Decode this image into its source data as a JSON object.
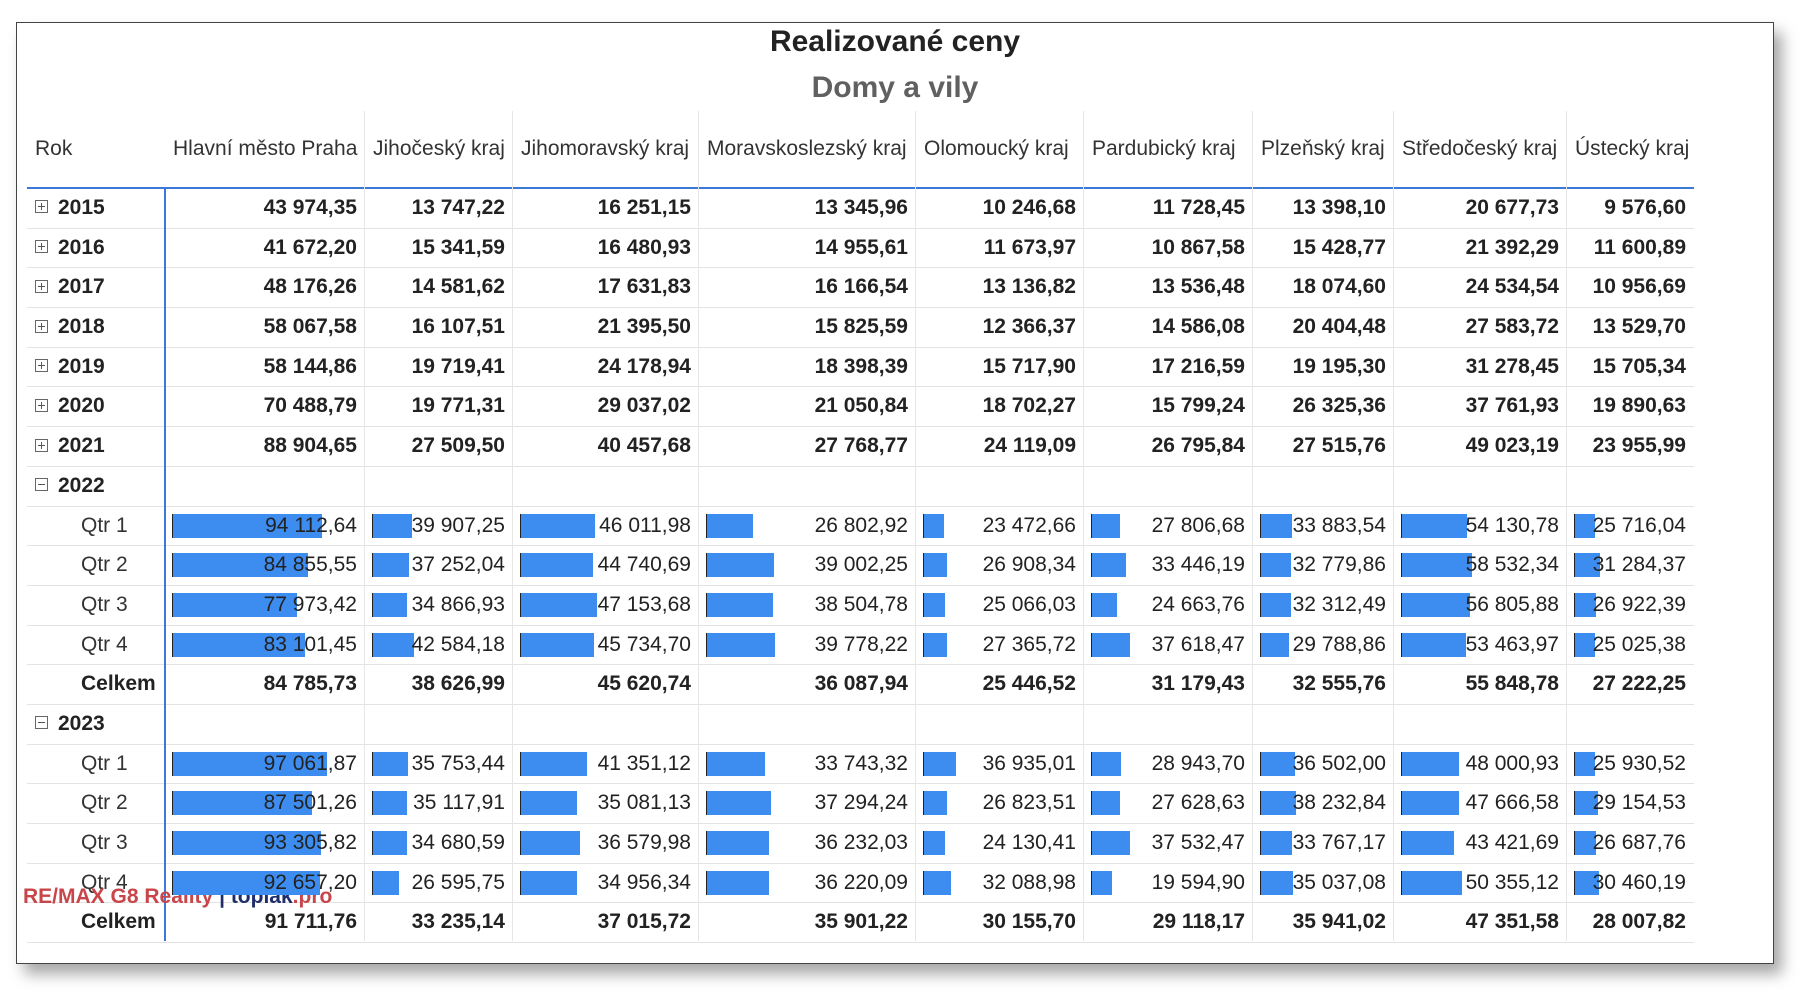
{
  "chart_data": {
    "type": "table",
    "title": "Realizované ceny",
    "subtitle": "Domy a vily",
    "row_header": "Rok",
    "columns": [
      "Hlavní město Praha",
      "Jihočeský kraj",
      "Jihomoravský kraj",
      "Moravskoslezský kraj",
      "Olomoucký kraj",
      "Pardubický kraj",
      "Plzeňský kraj",
      "Středočeský kraj",
      "Ústecký kraj"
    ],
    "rows": [
      {
        "label": "2015",
        "kind": "year",
        "expander": "plus",
        "values": [
          "43 974,35",
          "13 747,22",
          "16 251,15",
          "13 345,96",
          "10 246,68",
          "11 728,45",
          "13 398,10",
          "20 677,73",
          "9 576,60"
        ]
      },
      {
        "label": "2016",
        "kind": "year",
        "expander": "plus",
        "values": [
          "41 672,20",
          "15 341,59",
          "16 480,93",
          "14 955,61",
          "11 673,97",
          "10 867,58",
          "15 428,77",
          "21 392,29",
          "11 600,89"
        ]
      },
      {
        "label": "2017",
        "kind": "year",
        "expander": "plus",
        "values": [
          "48 176,26",
          "14 581,62",
          "17 631,83",
          "16 166,54",
          "13 136,82",
          "13 536,48",
          "18 074,60",
          "24 534,54",
          "10 956,69"
        ]
      },
      {
        "label": "2018",
        "kind": "year",
        "expander": "plus",
        "values": [
          "58 067,58",
          "16 107,51",
          "21 395,50",
          "15 825,59",
          "12 366,37",
          "14 586,08",
          "20 404,48",
          "27 583,72",
          "13 529,70"
        ]
      },
      {
        "label": "2019",
        "kind": "year",
        "expander": "plus",
        "values": [
          "58 144,86",
          "19 719,41",
          "24 178,94",
          "18 398,39",
          "15 717,90",
          "17 216,59",
          "19 195,30",
          "31 278,45",
          "15 705,34"
        ]
      },
      {
        "label": "2020",
        "kind": "year",
        "expander": "plus",
        "values": [
          "70 488,79",
          "19 771,31",
          "29 037,02",
          "21 050,84",
          "18 702,27",
          "15 799,24",
          "26 325,36",
          "37 761,93",
          "19 890,63"
        ]
      },
      {
        "label": "2021",
        "kind": "year",
        "expander": "plus",
        "values": [
          "88 904,65",
          "27 509,50",
          "40 457,68",
          "27 768,77",
          "24 119,09",
          "26 795,84",
          "27 515,76",
          "49 023,19",
          "23 955,99"
        ]
      },
      {
        "label": "2022",
        "kind": "year",
        "expander": "minus",
        "values": []
      },
      {
        "label": "Qtr 1",
        "kind": "qtr",
        "values": [
          "94 112,64",
          "39 907,25",
          "46 011,98",
          "26 802,92",
          "23 472,66",
          "27 806,68",
          "33 883,54",
          "54 130,78",
          "25 716,04"
        ]
      },
      {
        "label": "Qtr 2",
        "kind": "qtr",
        "values": [
          "84 855,55",
          "37 252,04",
          "44 740,69",
          "39 002,25",
          "26 908,34",
          "33 446,19",
          "32 779,86",
          "58 532,34",
          "31 284,37"
        ]
      },
      {
        "label": "Qtr 3",
        "kind": "qtr",
        "values": [
          "77 973,42",
          "34 866,93",
          "47 153,68",
          "38 504,78",
          "25 066,03",
          "24 663,76",
          "32 312,49",
          "56 805,88",
          "26 922,39"
        ]
      },
      {
        "label": "Qtr 4",
        "kind": "qtr",
        "values": [
          "83 101,45",
          "42 584,18",
          "45 734,70",
          "39 778,22",
          "27 365,72",
          "37 618,47",
          "29 788,86",
          "53 463,97",
          "25 025,38"
        ]
      },
      {
        "label": "Celkem",
        "kind": "total",
        "values": [
          "84 785,73",
          "38 626,99",
          "45 620,74",
          "36 087,94",
          "25 446,52",
          "31 179,43",
          "32 555,76",
          "55 848,78",
          "27 222,25"
        ]
      },
      {
        "label": "2023",
        "kind": "year",
        "expander": "minus",
        "values": []
      },
      {
        "label": "Qtr 1",
        "kind": "qtr",
        "values": [
          "97 061,87",
          "35 753,44",
          "41 351,12",
          "33 743,32",
          "36 935,01",
          "28 943,70",
          "36 502,00",
          "48 000,93",
          "25 930,52"
        ]
      },
      {
        "label": "Qtr 2",
        "kind": "qtr",
        "values": [
          "87 501,26",
          "35 117,91",
          "35 081,13",
          "37 294,24",
          "26 823,51",
          "27 628,63",
          "38 232,84",
          "47 666,58",
          "29 154,53"
        ]
      },
      {
        "label": "Qtr 3",
        "kind": "qtr",
        "values": [
          "93 305,82",
          "34 680,59",
          "36 579,98",
          "36 232,03",
          "24 130,41",
          "37 532,47",
          "33 767,17",
          "43 421,69",
          "26 687,76"
        ]
      },
      {
        "label": "Qtr 4",
        "kind": "qtr",
        "values": [
          "92 657,20",
          "26 595,75",
          "34 956,34",
          "36 220,09",
          "32 088,98",
          "19 594,90",
          "35 037,08",
          "50 355,12",
          "30 460,19"
        ]
      },
      {
        "label": "Celkem",
        "kind": "total",
        "values": [
          "91 711,76",
          "33 235,14",
          "37 015,72",
          "35 901,22",
          "30 155,70",
          "29 118,17",
          "35 941,02",
          "47 351,58",
          "28 007,82"
        ]
      }
    ],
    "bar_color": "#3d8df0"
  },
  "footer": {
    "brand": "RE/MAX G8 Reality",
    "separator": "|",
    "site_name": "toplak",
    "site_tld": ".pro"
  }
}
